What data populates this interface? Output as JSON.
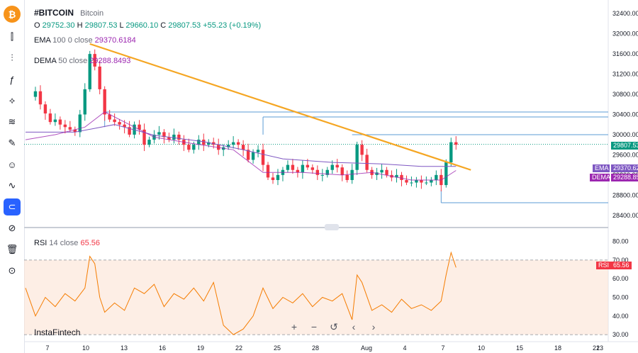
{
  "symbol": "#BITCOIN",
  "description": "Bitcoin",
  "ohlc": {
    "o_label": "O",
    "o": "29752.30",
    "h_label": "H",
    "h": "29807.53",
    "l_label": "L",
    "l": "29660.10",
    "c_label": "C",
    "c": "29807.53",
    "change": "+55.23 (+0.19%)"
  },
  "ema": {
    "label": "EMA",
    "params": "100 0 close",
    "value": "29370.6184"
  },
  "dema": {
    "label": "DEMA",
    "params": "50 close",
    "value": "29288.8493"
  },
  "rsi": {
    "label": "RSI",
    "params": "14 close",
    "value": "65.56"
  },
  "watermark": "InstaFintech",
  "badges": {
    "price": "29807.53",
    "ema_tag": "EMA",
    "ema_val": "29370.62",
    "dema_tag": "DEMA",
    "dema_val": "29288.85",
    "rsi_tag": "RSI",
    "rsi_val": "65.56"
  },
  "colors": {
    "up": "#089981",
    "down": "#f23645",
    "trendline": "#f5a623",
    "level": "#5b9bd5",
    "ema": "#9c27b0",
    "rsi": "#f57c00",
    "accent": "#2962ff"
  },
  "toolbar_icons": [
    "bitcoin-logo-icon",
    "candles-icon",
    "indicators-icon",
    "fx-icon",
    "node-icon",
    "trend-tools-icon",
    "brush-icon",
    "emoji-icon",
    "patterns-icon",
    "magnet-icon",
    "eye-off-icon",
    "trash-icon",
    "camera-icon"
  ],
  "chart_data": {
    "type": "candlestick",
    "price_axis": {
      "ticks": [
        28400,
        28800,
        29200,
        29600,
        30000,
        30400,
        30800,
        31200,
        31600,
        32000,
        32400
      ],
      "range": [
        28200,
        32600
      ]
    },
    "rsi_axis": {
      "ticks": [
        30,
        40,
        50,
        60,
        70,
        80
      ],
      "range": [
        27,
        84
      ],
      "band": [
        30,
        70
      ]
    },
    "x_ticks": [
      "7",
      "10",
      "13",
      "16",
      "19",
      "22",
      "25",
      "28",
      "Aug",
      "4",
      "7",
      "10",
      "15",
      "18",
      "21",
      "23"
    ],
    "price_path": [
      [
        0,
        30750
      ],
      [
        2,
        30860
      ],
      [
        3,
        30600
      ],
      [
        4,
        30420
      ],
      [
        5,
        30250
      ],
      [
        6,
        30300
      ],
      [
        7,
        30200
      ],
      [
        8,
        30150
      ],
      [
        9,
        30100
      ],
      [
        10,
        30050
      ],
      [
        11,
        30400
      ],
      [
        12,
        30900
      ],
      [
        13,
        31600
      ],
      [
        14,
        31350
      ],
      [
        15,
        30900
      ],
      [
        16,
        30400
      ],
      [
        17,
        30300
      ],
      [
        18,
        30250
      ],
      [
        19,
        30200
      ],
      [
        20,
        30150
      ],
      [
        21,
        30000
      ],
      [
        22,
        30200
      ],
      [
        23,
        30100
      ],
      [
        24,
        29800
      ],
      [
        25,
        29900
      ],
      [
        26,
        30000
      ],
      [
        27,
        30050
      ],
      [
        28,
        29950
      ],
      [
        29,
        29900
      ],
      [
        30,
        30000
      ],
      [
        31,
        29900
      ],
      [
        32,
        29800
      ],
      [
        33,
        29700
      ],
      [
        34,
        29800
      ],
      [
        35,
        29900
      ],
      [
        36,
        29800
      ],
      [
        37,
        29850
      ],
      [
        38,
        29800
      ],
      [
        39,
        29700
      ],
      [
        40,
        29750
      ],
      [
        41,
        29800
      ],
      [
        42,
        29850
      ],
      [
        43,
        29800
      ],
      [
        44,
        29700
      ],
      [
        45,
        29500
      ],
      [
        46,
        29650
      ],
      [
        47,
        29700
      ],
      [
        48,
        29400
      ],
      [
        49,
        29150
      ],
      [
        50,
        29100
      ],
      [
        51,
        29200
      ],
      [
        52,
        29300
      ],
      [
        53,
        29400
      ],
      [
        54,
        29300
      ],
      [
        55,
        29250
      ],
      [
        56,
        29400
      ],
      [
        57,
        29350
      ],
      [
        58,
        29300
      ],
      [
        59,
        29200
      ],
      [
        60,
        29200
      ],
      [
        61,
        29300
      ],
      [
        62,
        29400
      ],
      [
        63,
        29350
      ],
      [
        64,
        29200
      ],
      [
        65,
        29100
      ],
      [
        66,
        29300
      ],
      [
        67,
        29800
      ],
      [
        68,
        29600
      ],
      [
        69,
        29300
      ],
      [
        70,
        29200
      ],
      [
        71,
        29250
      ],
      [
        72,
        29300
      ],
      [
        73,
        29200
      ],
      [
        74,
        29150
      ],
      [
        75,
        29200
      ],
      [
        76,
        29100
      ],
      [
        77,
        29050
      ],
      [
        78,
        29050
      ],
      [
        79,
        29100
      ],
      [
        80,
        29050
      ],
      [
        81,
        29050
      ],
      [
        82,
        29100
      ],
      [
        83,
        29200
      ],
      [
        84,
        29000
      ],
      [
        85,
        29450
      ],
      [
        86,
        29850
      ],
      [
        87,
        29800
      ]
    ],
    "ema100": [
      [
        0,
        30050
      ],
      [
        10,
        30050
      ],
      [
        18,
        30200
      ],
      [
        26,
        29990
      ],
      [
        36,
        29860
      ],
      [
        44,
        29700
      ],
      [
        52,
        29520
      ],
      [
        62,
        29450
      ],
      [
        72,
        29420
      ],
      [
        80,
        29370
      ],
      [
        87,
        29370
      ]
    ],
    "dema50": [
      [
        0,
        29900
      ],
      [
        6,
        30000
      ],
      [
        12,
        30150
      ],
      [
        16,
        30450
      ],
      [
        20,
        30250
      ],
      [
        26,
        29950
      ],
      [
        34,
        29820
      ],
      [
        42,
        29700
      ],
      [
        48,
        29250
      ],
      [
        56,
        29250
      ],
      [
        64,
        29200
      ],
      [
        70,
        29250
      ],
      [
        78,
        29100
      ],
      [
        84,
        29100
      ],
      [
        87,
        29290
      ]
    ],
    "trendline": {
      "from": [
        13,
        31800
      ],
      "to": [
        90,
        29300
      ]
    },
    "levels": [
      {
        "price": 30450,
        "from": 16,
        "to": 100
      },
      {
        "price": 30350,
        "from": 48,
        "to": 100
      },
      {
        "price": 30000,
        "from": 66,
        "to": 100
      },
      {
        "price": 28650,
        "from": 84,
        "to": 100
      }
    ],
    "rsi_path": [
      [
        0,
        55
      ],
      [
        2,
        40
      ],
      [
        4,
        50
      ],
      [
        6,
        45
      ],
      [
        8,
        52
      ],
      [
        10,
        48
      ],
      [
        12,
        55
      ],
      [
        13,
        72
      ],
      [
        14,
        68
      ],
      [
        15,
        50
      ],
      [
        16,
        42
      ],
      [
        18,
        47
      ],
      [
        20,
        43
      ],
      [
        22,
        55
      ],
      [
        24,
        52
      ],
      [
        26,
        57
      ],
      [
        28,
        45
      ],
      [
        30,
        52
      ],
      [
        32,
        49
      ],
      [
        34,
        55
      ],
      [
        36,
        48
      ],
      [
        38,
        58
      ],
      [
        40,
        35
      ],
      [
        42,
        30
      ],
      [
        44,
        33
      ],
      [
        46,
        40
      ],
      [
        48,
        55
      ],
      [
        50,
        44
      ],
      [
        52,
        50
      ],
      [
        54,
        47
      ],
      [
        56,
        52
      ],
      [
        58,
        45
      ],
      [
        60,
        50
      ],
      [
        62,
        48
      ],
      [
        64,
        52
      ],
      [
        66,
        38
      ],
      [
        67,
        62
      ],
      [
        68,
        58
      ],
      [
        70,
        43
      ],
      [
        72,
        46
      ],
      [
        74,
        42
      ],
      [
        76,
        49
      ],
      [
        78,
        44
      ],
      [
        80,
        46
      ],
      [
        82,
        43
      ],
      [
        84,
        48
      ],
      [
        85,
        62
      ],
      [
        86,
        74
      ],
      [
        87,
        66
      ]
    ]
  }
}
